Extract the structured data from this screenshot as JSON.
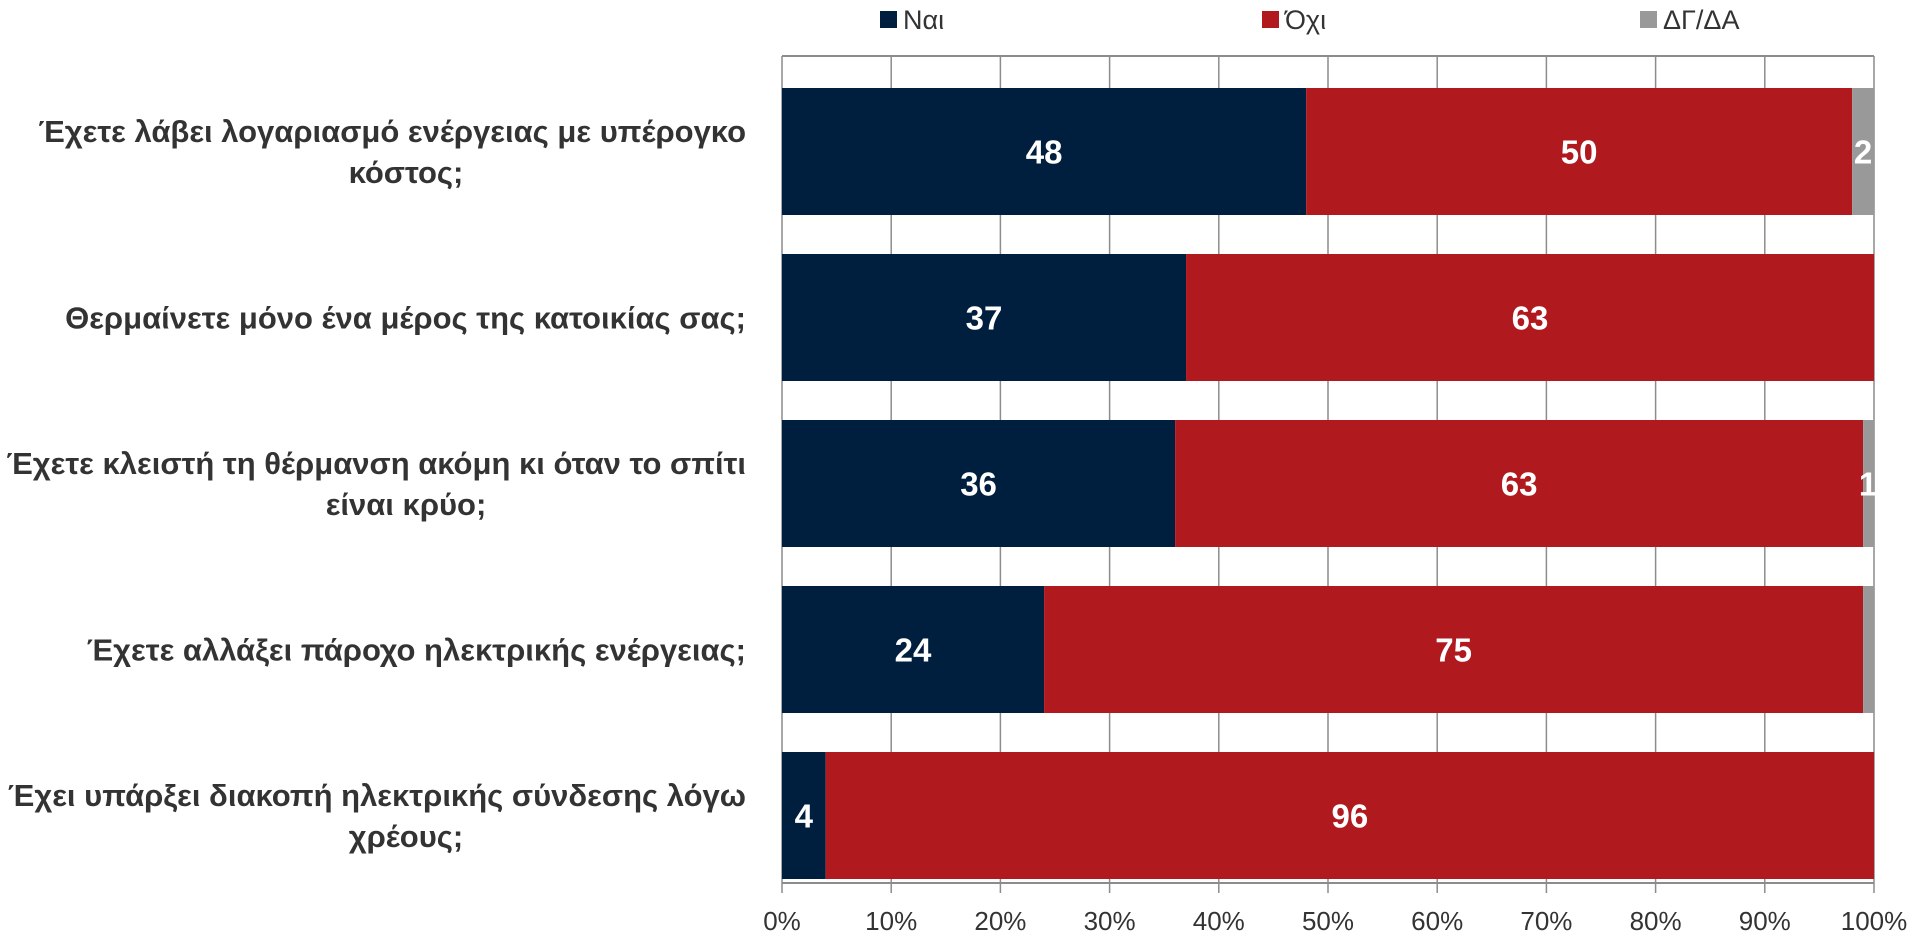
{
  "chart_data": {
    "type": "bar",
    "orientation": "horizontal",
    "stacked": true,
    "categories": [
      [
        "Έχετε λάβει λογαριασμό ενέργειας με υπέρογκο",
        "κόστος;"
      ],
      [
        "Θερμαίνετε μόνο ένα μέρος της κατοικίας σας;"
      ],
      [
        "Έχετε κλειστή τη θέρμανση ακόμη κι όταν το σπίτι",
        "είναι κρύο;"
      ],
      [
        "Έχετε αλλάξει πάροχο ηλεκτρικής ενέργειας;"
      ],
      [
        "Έχει υπάρξει διακοπή ηλεκτρικής σύνδεσης λόγω",
        "χρέους;"
      ]
    ],
    "series": [
      {
        "name": "Ναι",
        "color": "#001f3f",
        "values": [
          48,
          37,
          36,
          24,
          4
        ],
        "labels": [
          "48",
          "37",
          "36",
          "24",
          "4"
        ]
      },
      {
        "name": "Όχι",
        "color": "#b01a1f",
        "values": [
          50,
          63,
          63,
          75,
          96
        ],
        "labels": [
          "50",
          "63",
          "63",
          "75",
          "96"
        ]
      },
      {
        "name": "ΔΓ/ΔΑ",
        "color": "#999999",
        "values": [
          2,
          0,
          1,
          1,
          0
        ],
        "labels": [
          "2",
          "",
          "1",
          "",
          ""
        ]
      }
    ],
    "xlim": [
      0,
      100
    ],
    "xticks": [
      "0%",
      "10%",
      "20%",
      "30%",
      "40%",
      "50%",
      "60%",
      "70%",
      "80%",
      "90%",
      "100%"
    ],
    "grid": true,
    "legend_position": "top",
    "title": "",
    "xlabel": "",
    "ylabel": ""
  }
}
